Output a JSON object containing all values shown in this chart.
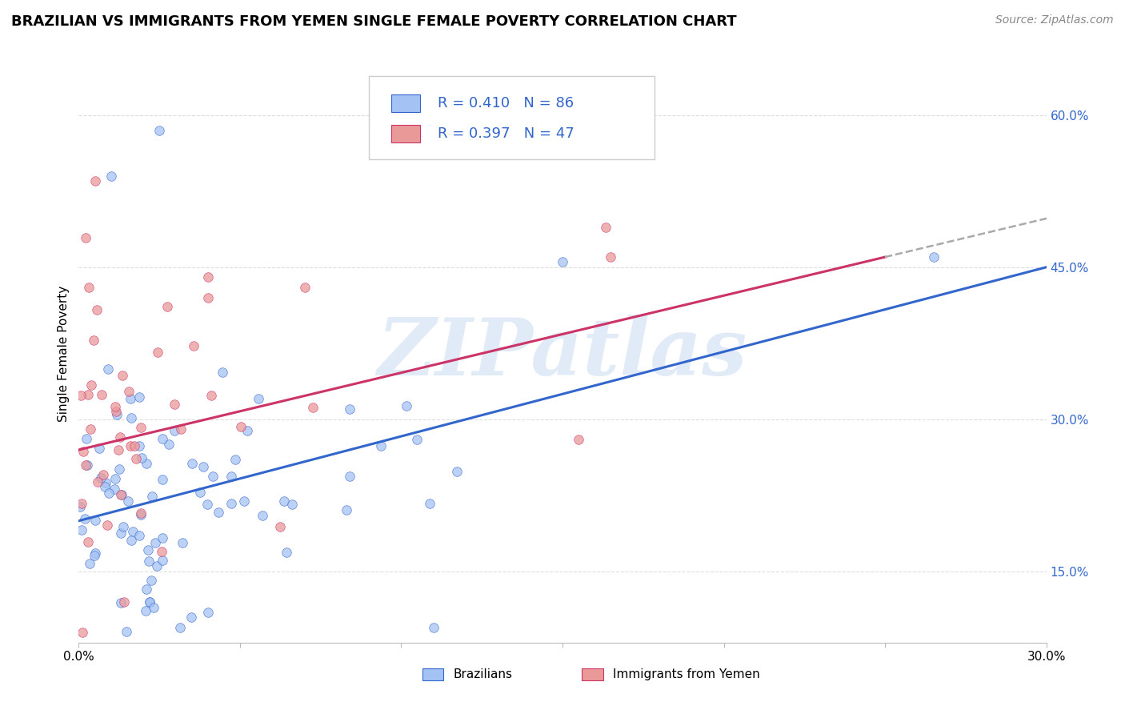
{
  "title": "BRAZILIAN VS IMMIGRANTS FROM YEMEN SINGLE FEMALE POVERTY CORRELATION CHART",
  "source": "Source: ZipAtlas.com",
  "ylabel": "Single Female Poverty",
  "legend_label1": "Brazilians",
  "legend_label2": "Immigrants from Yemen",
  "R1": 0.41,
  "N1": 86,
  "R2": 0.397,
  "N2": 47,
  "xmin": 0.0,
  "xmax": 0.3,
  "ymin": 0.08,
  "ymax": 0.65,
  "color_blue": "#A4C2F4",
  "color_pink": "#EA9999",
  "color_line_blue": "#3366CC",
  "color_line_pink": "#CC3366",
  "watermark": "ZIPatlas",
  "watermark_color": "#C5D9F1",
  "yticks": [
    0.15,
    0.3,
    0.45,
    0.6
  ],
  "ytick_labels": [
    "15.0%",
    "30.0%",
    "45.0%",
    "60.0%"
  ],
  "xticks": [
    0.0,
    0.05,
    0.1,
    0.15,
    0.2,
    0.25,
    0.3
  ],
  "xtick_labels": [
    "0.0%",
    "",
    "",
    "",
    "",
    "",
    "30.0%"
  ],
  "title_fontsize": 13,
  "source_fontsize": 10,
  "tick_fontsize": 11,
  "legend_fontsize": 13
}
